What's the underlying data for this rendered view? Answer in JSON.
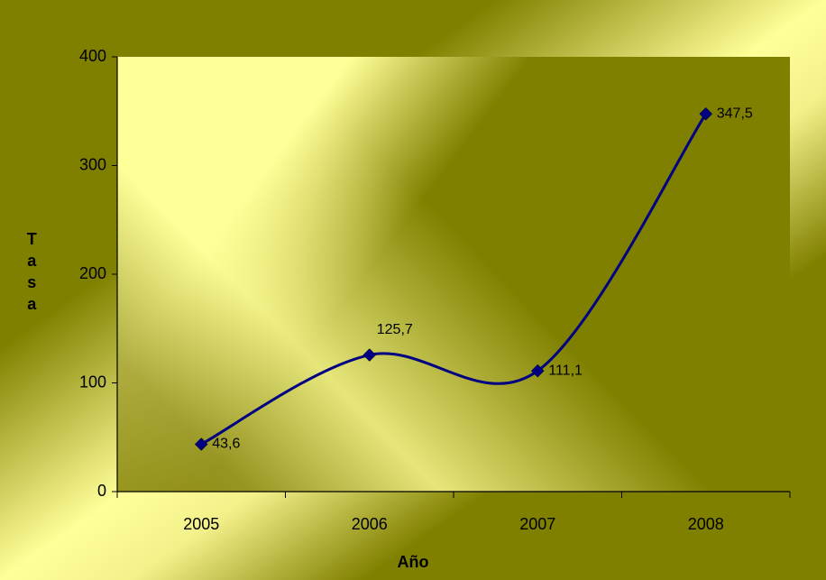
{
  "chart_data": {
    "type": "line",
    "x_label": "Año",
    "y_label": "Tasa",
    "categories": [
      "2005",
      "2006",
      "2007",
      "2008"
    ],
    "series": [
      {
        "name": "Tasa",
        "color": "#000080",
        "values": [
          43.6,
          125.7,
          111.1,
          347.5
        ],
        "value_labels": [
          "43,6",
          "125,7",
          "111,1",
          "347,5"
        ]
      }
    ],
    "ylim": [
      0,
      400
    ],
    "yticks": [
      0,
      100,
      200,
      300,
      400
    ],
    "smooth": true,
    "grid": false
  }
}
